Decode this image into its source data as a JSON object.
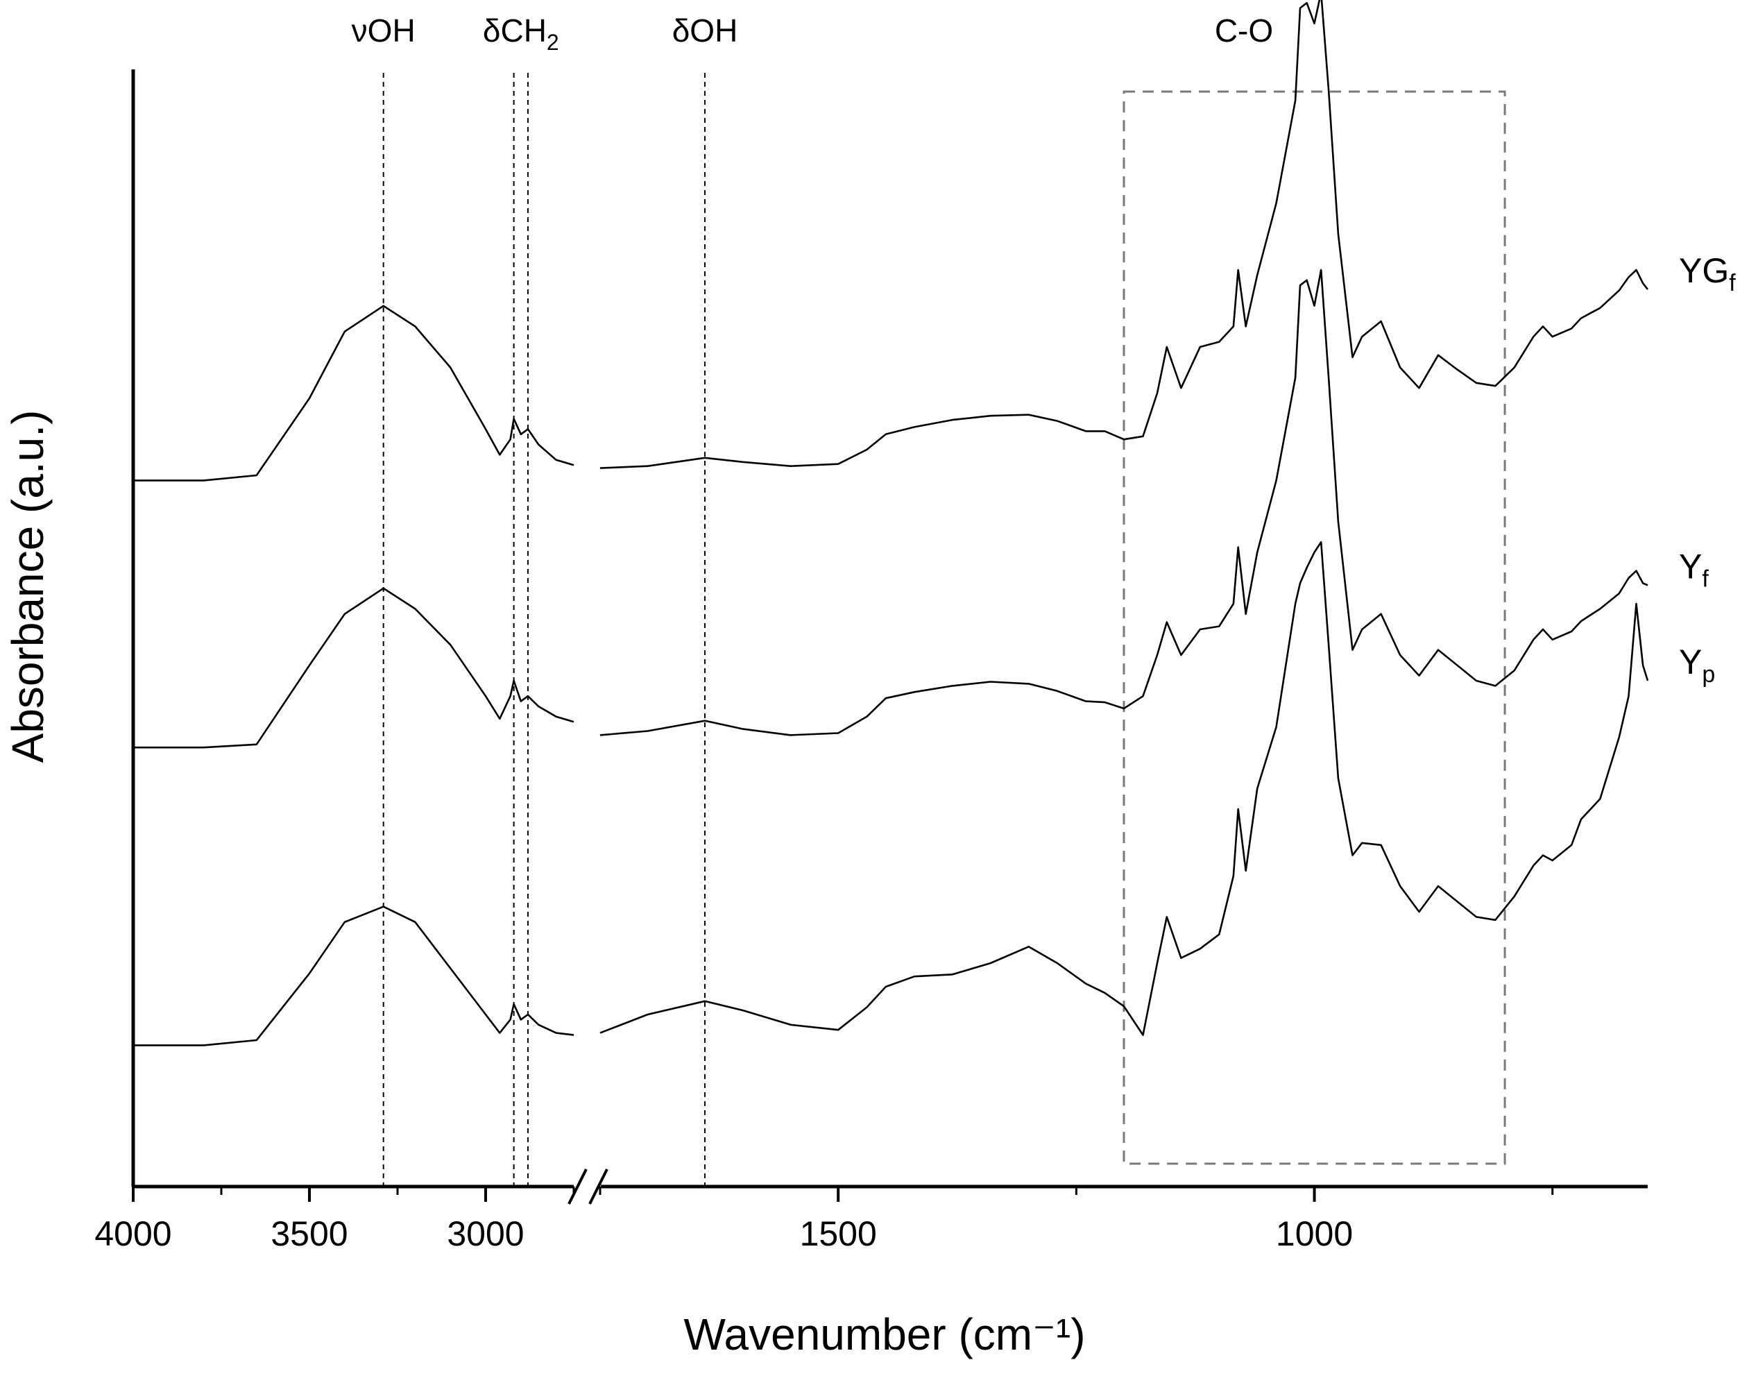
{
  "chart_data": {
    "type": "line",
    "xlabel": "Wavenumber (cm⁻¹)",
    "ylabel": "Absorbance (a.u.)",
    "xlim": [
      4000,
      650
    ],
    "axis_break": {
      "segment1": [
        4000,
        2750
      ],
      "segment2": [
        1750,
        650
      ]
    },
    "ylim": [
      0,
      1
    ],
    "grid": false,
    "x_tick_labels": [
      "4000",
      "3500",
      "3000",
      "1500",
      "1000"
    ],
    "peak_markers": [
      {
        "label": "νOH",
        "wavenumber": 3290
      },
      {
        "label": "δCH",
        "subscript": "2",
        "wavenumber": [
          2920,
          2880
        ]
      },
      {
        "label": "δOH",
        "wavenumber": 1640
      }
    ],
    "region_box": {
      "label": "C-O",
      "range": [
        1200,
        800
      ]
    },
    "series": [
      {
        "name": "YG",
        "subscript": "f",
        "points": [
          [
            4000,
            0.62
          ],
          [
            3800,
            0.62
          ],
          [
            3650,
            0.625
          ],
          [
            3500,
            0.7
          ],
          [
            3400,
            0.765
          ],
          [
            3290,
            0.79
          ],
          [
            3200,
            0.77
          ],
          [
            3100,
            0.73
          ],
          [
            3000,
            0.67
          ],
          [
            2960,
            0.645
          ],
          [
            2930,
            0.66
          ],
          [
            2920,
            0.68
          ],
          [
            2900,
            0.665
          ],
          [
            2880,
            0.67
          ],
          [
            2850,
            0.655
          ],
          [
            2800,
            0.64
          ],
          [
            2750,
            0.635
          ],
          [
            1750,
            0.632
          ],
          [
            1700,
            0.634
          ],
          [
            1640,
            0.642
          ],
          [
            1600,
            0.638
          ],
          [
            1550,
            0.634
          ],
          [
            1500,
            0.636
          ],
          [
            1470,
            0.65
          ],
          [
            1450,
            0.665
          ],
          [
            1420,
            0.672
          ],
          [
            1380,
            0.679
          ],
          [
            1340,
            0.683
          ],
          [
            1300,
            0.684
          ],
          [
            1270,
            0.678
          ],
          [
            1240,
            0.668
          ],
          [
            1220,
            0.668
          ],
          [
            1200,
            0.66
          ],
          [
            1180,
            0.663
          ],
          [
            1165,
            0.705
          ],
          [
            1155,
            0.75
          ],
          [
            1140,
            0.71
          ],
          [
            1120,
            0.75
          ],
          [
            1100,
            0.755
          ],
          [
            1085,
            0.77
          ],
          [
            1080,
            0.825
          ],
          [
            1072,
            0.77
          ],
          [
            1060,
            0.82
          ],
          [
            1040,
            0.89
          ],
          [
            1020,
            0.99
          ],
          [
            1015,
            1.08
          ],
          [
            1008,
            1.085
          ],
          [
            1000,
            1.065
          ],
          [
            993,
            1.095
          ],
          [
            985,
            1.0
          ],
          [
            975,
            0.86
          ],
          [
            960,
            0.74
          ],
          [
            950,
            0.76
          ],
          [
            930,
            0.775
          ],
          [
            910,
            0.73
          ],
          [
            890,
            0.71
          ],
          [
            870,
            0.742
          ],
          [
            850,
            0.728
          ],
          [
            830,
            0.715
          ],
          [
            810,
            0.712
          ],
          [
            790,
            0.73
          ],
          [
            770,
            0.76
          ],
          [
            760,
            0.77
          ],
          [
            750,
            0.76
          ],
          [
            730,
            0.768
          ],
          [
            720,
            0.778
          ],
          [
            700,
            0.788
          ],
          [
            680,
            0.805
          ],
          [
            670,
            0.818
          ],
          [
            662,
            0.825
          ],
          [
            655,
            0.812
          ],
          [
            650,
            0.806
          ]
        ]
      },
      {
        "name": "Y",
        "subscript": "f",
        "points": [
          [
            4000,
            0.36
          ],
          [
            3800,
            0.36
          ],
          [
            3650,
            0.363
          ],
          [
            3500,
            0.44
          ],
          [
            3400,
            0.49
          ],
          [
            3290,
            0.515
          ],
          [
            3200,
            0.495
          ],
          [
            3100,
            0.46
          ],
          [
            3000,
            0.41
          ],
          [
            2960,
            0.388
          ],
          [
            2930,
            0.41
          ],
          [
            2920,
            0.425
          ],
          [
            2900,
            0.405
          ],
          [
            2880,
            0.41
          ],
          [
            2850,
            0.4
          ],
          [
            2800,
            0.39
          ],
          [
            2750,
            0.385
          ],
          [
            1750,
            0.372
          ],
          [
            1700,
            0.376
          ],
          [
            1640,
            0.386
          ],
          [
            1600,
            0.378
          ],
          [
            1550,
            0.372
          ],
          [
            1500,
            0.374
          ],
          [
            1470,
            0.39
          ],
          [
            1450,
            0.408
          ],
          [
            1420,
            0.414
          ],
          [
            1380,
            0.42
          ],
          [
            1340,
            0.424
          ],
          [
            1300,
            0.422
          ],
          [
            1270,
            0.415
          ],
          [
            1240,
            0.405
          ],
          [
            1220,
            0.404
          ],
          [
            1200,
            0.398
          ],
          [
            1180,
            0.41
          ],
          [
            1165,
            0.45
          ],
          [
            1155,
            0.482
          ],
          [
            1140,
            0.45
          ],
          [
            1120,
            0.475
          ],
          [
            1100,
            0.478
          ],
          [
            1085,
            0.5
          ],
          [
            1080,
            0.555
          ],
          [
            1072,
            0.49
          ],
          [
            1060,
            0.55
          ],
          [
            1040,
            0.62
          ],
          [
            1020,
            0.72
          ],
          [
            1015,
            0.81
          ],
          [
            1008,
            0.815
          ],
          [
            1000,
            0.79
          ],
          [
            993,
            0.825
          ],
          [
            985,
            0.72
          ],
          [
            975,
            0.58
          ],
          [
            960,
            0.455
          ],
          [
            950,
            0.475
          ],
          [
            930,
            0.49
          ],
          [
            910,
            0.45
          ],
          [
            890,
            0.43
          ],
          [
            870,
            0.455
          ],
          [
            850,
            0.44
          ],
          [
            830,
            0.425
          ],
          [
            810,
            0.42
          ],
          [
            790,
            0.435
          ],
          [
            770,
            0.465
          ],
          [
            760,
            0.475
          ],
          [
            750,
            0.465
          ],
          [
            730,
            0.473
          ],
          [
            720,
            0.483
          ],
          [
            700,
            0.495
          ],
          [
            680,
            0.51
          ],
          [
            670,
            0.525
          ],
          [
            662,
            0.532
          ],
          [
            655,
            0.52
          ],
          [
            650,
            0.518
          ]
        ]
      },
      {
        "name": "Y",
        "subscript": "p",
        "points": [
          [
            4000,
            0.07
          ],
          [
            3800,
            0.07
          ],
          [
            3650,
            0.075
          ],
          [
            3500,
            0.14
          ],
          [
            3400,
            0.19
          ],
          [
            3290,
            0.205
          ],
          [
            3200,
            0.19
          ],
          [
            3100,
            0.145
          ],
          [
            3000,
            0.1
          ],
          [
            2960,
            0.082
          ],
          [
            2930,
            0.095
          ],
          [
            2920,
            0.11
          ],
          [
            2900,
            0.095
          ],
          [
            2880,
            0.1
          ],
          [
            2850,
            0.09
          ],
          [
            2800,
            0.082
          ],
          [
            2750,
            0.08
          ],
          [
            1750,
            0.082
          ],
          [
            1700,
            0.1
          ],
          [
            1640,
            0.113
          ],
          [
            1600,
            0.104
          ],
          [
            1550,
            0.09
          ],
          [
            1500,
            0.085
          ],
          [
            1470,
            0.107
          ],
          [
            1450,
            0.127
          ],
          [
            1420,
            0.137
          ],
          [
            1380,
            0.139
          ],
          [
            1340,
            0.15
          ],
          [
            1300,
            0.166
          ],
          [
            1270,
            0.15
          ],
          [
            1240,
            0.13
          ],
          [
            1220,
            0.121
          ],
          [
            1200,
            0.108
          ],
          [
            1180,
            0.08
          ],
          [
            1165,
            0.15
          ],
          [
            1155,
            0.195
          ],
          [
            1140,
            0.155
          ],
          [
            1120,
            0.164
          ],
          [
            1100,
            0.178
          ],
          [
            1085,
            0.235
          ],
          [
            1080,
            0.3
          ],
          [
            1072,
            0.24
          ],
          [
            1060,
            0.32
          ],
          [
            1040,
            0.38
          ],
          [
            1020,
            0.5
          ],
          [
            1015,
            0.52
          ],
          [
            1008,
            0.535
          ],
          [
            1000,
            0.55
          ],
          [
            993,
            0.56
          ],
          [
            985,
            0.46
          ],
          [
            975,
            0.33
          ],
          [
            960,
            0.255
          ],
          [
            950,
            0.267
          ],
          [
            930,
            0.265
          ],
          [
            910,
            0.225
          ],
          [
            890,
            0.2
          ],
          [
            870,
            0.225
          ],
          [
            850,
            0.21
          ],
          [
            830,
            0.195
          ],
          [
            810,
            0.192
          ],
          [
            790,
            0.215
          ],
          [
            770,
            0.245
          ],
          [
            760,
            0.255
          ],
          [
            750,
            0.25
          ],
          [
            730,
            0.265
          ],
          [
            720,
            0.29
          ],
          [
            700,
            0.31
          ],
          [
            680,
            0.37
          ],
          [
            670,
            0.41
          ],
          [
            662,
            0.5
          ],
          [
            655,
            0.44
          ],
          [
            650,
            0.425
          ]
        ]
      }
    ]
  }
}
